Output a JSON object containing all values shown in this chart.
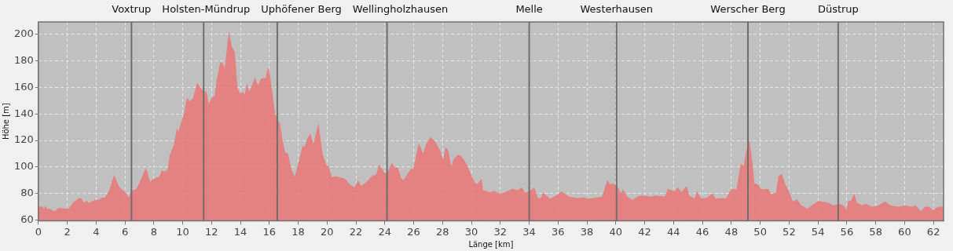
{
  "chart_data": {
    "type": "area",
    "xlabel": "Länge [km]",
    "ylabel": "Höhe [m]",
    "xlim": [
      0,
      62.7
    ],
    "xticks": [
      0,
      2,
      4,
      6,
      8,
      10,
      12,
      14,
      16,
      18,
      20,
      22,
      24,
      26,
      28,
      30,
      32,
      34,
      36,
      38,
      40,
      42,
      44,
      46,
      48,
      50,
      52,
      54,
      56,
      58,
      60,
      62
    ],
    "ylim": [
      59.4,
      209.4
    ],
    "yticks": [
      60,
      80,
      100,
      120,
      140,
      160,
      180,
      200
    ],
    "grid": true,
    "legend": false,
    "ref_lines": [
      {
        "axis": "x",
        "value": 6.45,
        "label": "Voxtrup",
        "color": "#6e6e6e"
      },
      {
        "axis": "x",
        "value": 11.45,
        "label": "Holsten-Mündrup",
        "color": "#6e6e6e"
      },
      {
        "axis": "x",
        "value": 16.55,
        "label": "Uphöfener Berg",
        "color": "#6e6e6e"
      },
      {
        "axis": "x",
        "value": 24.15,
        "label": "Wellingholzhausen",
        "color": "#6e6e6e"
      },
      {
        "axis": "x",
        "value": 34.0,
        "label": "Melle",
        "color": "#6e6e6e"
      },
      {
        "axis": "x",
        "value": 40.05,
        "label": "Westerhausen",
        "color": "#6e6e6e"
      },
      {
        "axis": "x",
        "value": 49.15,
        "label": "Werscher Berg",
        "color": "#6e6e6e"
      },
      {
        "axis": "x",
        "value": 55.4,
        "label": "Düstrup",
        "color": "#6e6e6e"
      }
    ],
    "series": [
      {
        "color": "#e87a7a",
        "x": [
          0,
          0.3,
          0.4,
          0.5,
          0.6,
          0.8,
          1.1,
          1.4,
          1.85,
          2.1,
          2.4,
          2.8,
          3.0,
          3.15,
          3.35,
          3.5,
          3.9,
          4.25,
          4.4,
          4.6,
          4.9,
          5.25,
          5.6,
          5.9,
          6.1,
          6.25,
          6.45,
          6.8,
          7.1,
          7.45,
          7.75,
          7.9,
          8.4,
          8.55,
          8.75,
          8.95,
          9.1,
          9.4,
          9.6,
          9.7,
          10.1,
          10.3,
          10.45,
          10.7,
          11.0,
          11.25,
          11.4,
          11.65,
          11.8,
          12.05,
          12.2,
          12.35,
          12.6,
          12.8,
          12.9,
          13.2,
          13.4,
          13.6,
          13.8,
          13.95,
          14.2,
          14.3,
          14.45,
          14.6,
          14.8,
          15.0,
          15.2,
          15.45,
          15.75,
          15.9,
          16.05,
          16.4,
          16.55,
          16.75,
          16.9,
          17.1,
          17.3,
          17.5,
          17.75,
          18.05,
          18.3,
          18.45,
          18.65,
          18.85,
          19.05,
          19.25,
          19.4,
          19.7,
          19.95,
          20.1,
          20.35,
          20.55,
          21.2,
          21.6,
          21.9,
          22.15,
          22.35,
          22.7,
          23.15,
          23.4,
          23.6,
          24.0,
          24.15,
          24.5,
          24.7,
          24.9,
          25.15,
          25.3,
          25.6,
          25.8,
          25.95,
          26.35,
          26.65,
          26.85,
          27.15,
          27.5,
          27.85,
          28.05,
          28.2,
          28.4,
          28.6,
          28.75,
          29.05,
          29.3,
          29.7,
          29.95,
          30.25,
          30.4,
          30.7,
          30.8,
          31.25,
          31.6,
          31.9,
          32.25,
          32.85,
          33.2,
          33.5,
          33.7,
          34.0,
          34.35,
          34.6,
          34.8,
          34.95,
          35.3,
          35.45,
          35.85,
          36.25,
          36.75,
          37.3,
          37.75,
          38.15,
          39.05,
          39.4,
          39.6,
          39.85,
          40.15,
          40.35,
          40.5,
          40.8,
          41.15,
          41.45,
          41.8,
          42.5,
          42.7,
          43.4,
          43.6,
          44.05,
          44.3,
          44.55,
          44.9,
          45.1,
          45.45,
          45.6,
          45.9,
          46.25,
          46.7,
          46.9,
          47.65,
          48.0,
          48.35,
          48.65,
          48.85,
          49.05,
          49.25,
          49.45,
          49.6,
          49.85,
          50.1,
          50.55,
          50.75,
          51.1,
          51.25,
          51.5,
          51.75,
          52.05,
          52.25,
          52.55,
          52.85,
          53.25,
          53.5,
          54.05,
          54.7,
          55.05,
          55.55,
          55.85,
          55.95,
          56.1,
          56.3,
          56.5,
          56.7,
          57.05,
          57.3,
          57.75,
          58.2,
          58.65,
          59.0,
          59.6,
          60.05,
          60.5,
          60.75,
          61.15,
          61.4,
          61.7,
          61.95,
          62.35,
          62.7
        ],
        "values": [
          70,
          70,
          68,
          71,
          68,
          68.5,
          66.5,
          69,
          68.5,
          68.5,
          73,
          76.5,
          76,
          73,
          74.5,
          73,
          75,
          75.5,
          77,
          76.5,
          82,
          94,
          85,
          82,
          80,
          77,
          82,
          83.5,
          90.5,
          99.5,
          88.5,
          90.5,
          93,
          97.5,
          96.5,
          98,
          109,
          117,
          129.5,
          126.5,
          141,
          152.5,
          149.5,
          151.5,
          163.5,
          159.5,
          157.5,
          156.5,
          148,
          152.5,
          153.5,
          165.5,
          179,
          178,
          174,
          202.5,
          190.5,
          187,
          159.5,
          155.5,
          156.5,
          154.5,
          163.5,
          156.5,
          161.5,
          167.5,
          161.5,
          167,
          167,
          176,
          169,
          140,
          137,
          132,
          121,
          111,
          110,
          99.5,
          92.5,
          104.5,
          116,
          115,
          122,
          125,
          117,
          126,
          133,
          109,
          101.5,
          100.5,
          92,
          93,
          91.5,
          86.5,
          84.5,
          90,
          85.5,
          88.5,
          93.5,
          94,
          102,
          95.5,
          95.5,
          103,
          99.5,
          99.5,
          91.5,
          90,
          95.5,
          98.5,
          98,
          118,
          110,
          117,
          122.5,
          119,
          112,
          105,
          115,
          112,
          100.5,
          105.5,
          109,
          108,
          101.5,
          94.5,
          88,
          87,
          91,
          82.5,
          81,
          82,
          80,
          80.5,
          83.5,
          82.5,
          84.5,
          80.5,
          81.5,
          84.5,
          76.5,
          76.5,
          80.5,
          77.5,
          76,
          78.5,
          81.5,
          77.5,
          76.5,
          77,
          76,
          77.5,
          90,
          87,
          87.5,
          84.5,
          80,
          83,
          77.5,
          75,
          77.5,
          78.5,
          77.5,
          78.5,
          77.5,
          83.5,
          81.5,
          84.5,
          81,
          85.5,
          78.5,
          76,
          81.5,
          76.5,
          76.5,
          80,
          76,
          76.5,
          83.5,
          83,
          102.5,
          100.5,
          113,
          120.5,
          104.5,
          87.5,
          86.5,
          83,
          83.5,
          79.5,
          80.5,
          93,
          94.5,
          86.5,
          80,
          74,
          75.5,
          71,
          68.5,
          70.5,
          74.5,
          73,
          71,
          72,
          70,
          67.5,
          74.5,
          74.5,
          80,
          73,
          71,
          72,
          70,
          71,
          74,
          71,
          70,
          71,
          70,
          71,
          66.5,
          70,
          70,
          67.5,
          70,
          70
        ]
      }
    ]
  }
}
